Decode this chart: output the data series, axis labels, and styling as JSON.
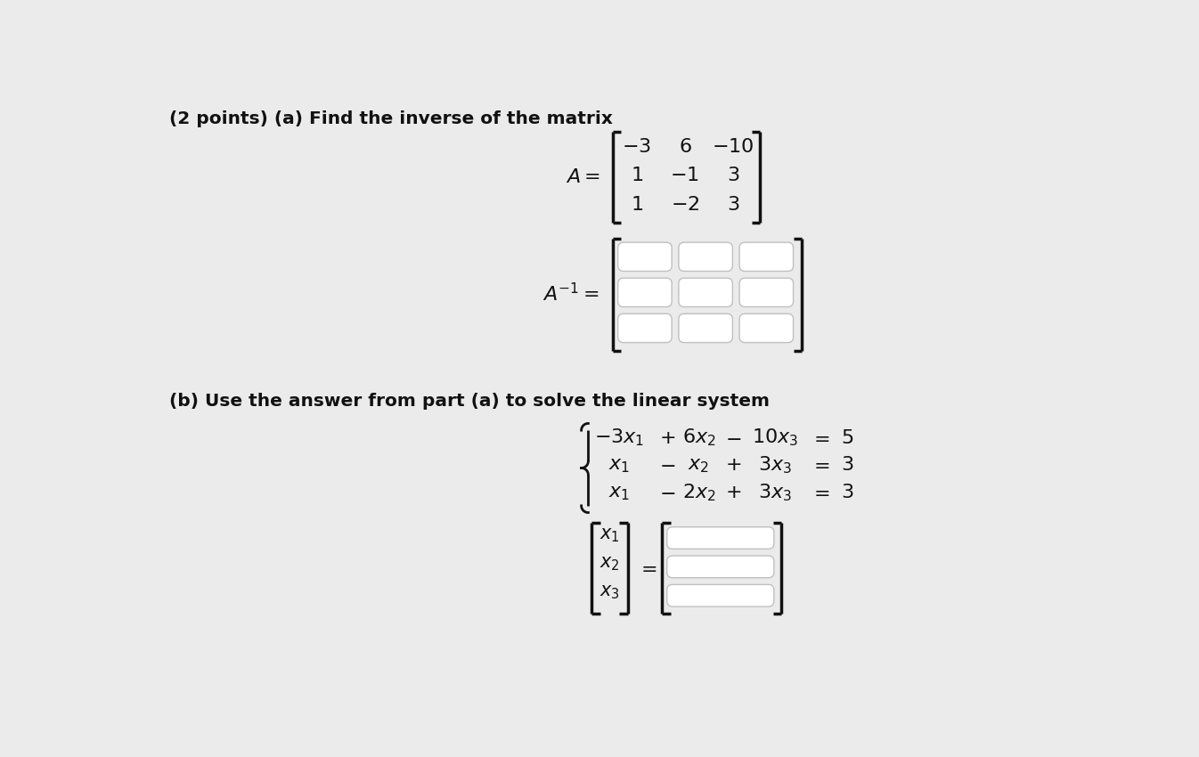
{
  "background_color": "#ebebeb",
  "title_text": "(2 points) (a) Find the inverse of the matrix",
  "part_b_text": "(b) Use the answer from part (a) to solve the linear system",
  "matrix_A_rows": [
    [
      "-3",
      "6",
      "-10"
    ],
    [
      "1",
      "-1",
      "3"
    ],
    [
      "1",
      "-2",
      "3"
    ]
  ],
  "box_color": "#ffffff",
  "box_edge_color": "#c0c0c0",
  "text_color": "#111111",
  "bracket_color": "#111111"
}
